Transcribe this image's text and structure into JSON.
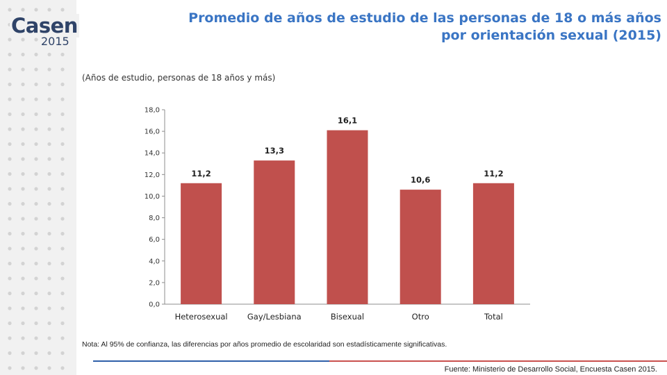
{
  "logo": {
    "word": "Casen",
    "year": "2015"
  },
  "header": {
    "title_line1": "Promedio de años de estudio de las personas de 18 o más años",
    "title_line2": "por orientación sexual (2015)",
    "subtitle": "(Años de estudio, personas de 18 años y más)"
  },
  "colors": {
    "title": "#3a75c4",
    "bar": "#c0504d",
    "logo": "#2f4368",
    "rule_blue": "#2e5fa8",
    "rule_red": "#c9504d"
  },
  "chart_data": {
    "type": "bar",
    "categories": [
      "Heterosexual",
      "Gay/Lesbiana",
      "Bisexual",
      "Otro",
      "Total"
    ],
    "values": [
      11.2,
      13.3,
      16.1,
      10.6,
      11.2
    ],
    "value_labels": [
      "11,2",
      "13,3",
      "16,1",
      "10,6",
      "11,2"
    ],
    "ylim": [
      0,
      18
    ],
    "yticks": [
      "0,0",
      "2,0",
      "4,0",
      "6,0",
      "8,0",
      "10,0",
      "12,0",
      "14,0",
      "16,0",
      "18,0"
    ],
    "title": "",
    "xlabel": "",
    "ylabel": "",
    "grid": false,
    "legend": "none"
  },
  "footer": {
    "note": "Nota: Al 95% de confianza, las diferencias por años promedio de escolaridad son estadísticamente significativas.",
    "source": "Fuente: Ministerio de Desarrollo Social, Encuesta Casen 2015."
  }
}
